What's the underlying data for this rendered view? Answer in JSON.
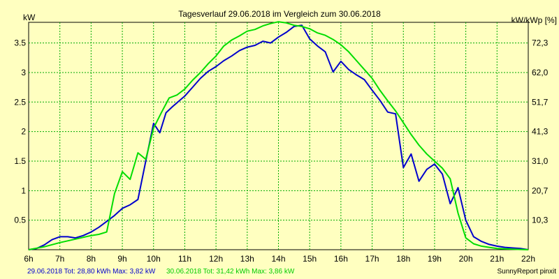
{
  "chart_data": {
    "type": "line",
    "title": "Tagesverlauf 29.06.2018 im Vergleich zum 30.06.2018",
    "ylabel_left": "kW",
    "ylabel_right": "kW/kWp [%]",
    "xlim": [
      6,
      22
    ],
    "ylim": [
      0,
      3.85
    ],
    "grid": true,
    "x_ticks": [
      {
        "value": 6,
        "label": "6h"
      },
      {
        "value": 7,
        "label": "7h"
      },
      {
        "value": 8,
        "label": "8h"
      },
      {
        "value": 9,
        "label": "9h"
      },
      {
        "value": 10,
        "label": "10h"
      },
      {
        "value": 11,
        "label": "11h"
      },
      {
        "value": 12,
        "label": "12h"
      },
      {
        "value": 13,
        "label": "13h"
      },
      {
        "value": 14,
        "label": "14h"
      },
      {
        "value": 15,
        "label": "15h"
      },
      {
        "value": 16,
        "label": "16h"
      },
      {
        "value": 17,
        "label": "17h"
      },
      {
        "value": 18,
        "label": "18h"
      },
      {
        "value": 19,
        "label": "19h"
      },
      {
        "value": 20,
        "label": "20h"
      },
      {
        "value": 21,
        "label": "21h"
      },
      {
        "value": 22,
        "label": "22h"
      }
    ],
    "y_ticks_left": [
      {
        "value": 0.5,
        "label": "0.5"
      },
      {
        "value": 1,
        "label": "1"
      },
      {
        "value": 1.5,
        "label": "1.5"
      },
      {
        "value": 2,
        "label": "2"
      },
      {
        "value": 2.5,
        "label": "2.5"
      },
      {
        "value": 3,
        "label": "3"
      },
      {
        "value": 3.5,
        "label": "3.5"
      }
    ],
    "y_ticks_right": [
      {
        "value": 0.5,
        "label": "10,3"
      },
      {
        "value": 1,
        "label": "20,7"
      },
      {
        "value": 1.5,
        "label": "31,0"
      },
      {
        "value": 2,
        "label": "41,3"
      },
      {
        "value": 2.5,
        "label": "51,7"
      },
      {
        "value": 3,
        "label": "62,0"
      },
      {
        "value": 3.5,
        "label": "72,3"
      }
    ],
    "series": [
      {
        "name": "29.06.2018 Tot: 28,80 kWh Max: 3,82 kW",
        "color": "#0000cc",
        "x": [
          6.0,
          6.25,
          6.5,
          6.75,
          7.0,
          7.25,
          7.5,
          7.75,
          8.0,
          8.25,
          8.5,
          8.75,
          9.0,
          9.25,
          9.5,
          9.75,
          10.0,
          10.2,
          10.4,
          10.6,
          11.0,
          11.25,
          11.5,
          11.75,
          12.0,
          12.25,
          12.5,
          12.75,
          13.0,
          13.25,
          13.5,
          13.75,
          14.0,
          14.25,
          14.5,
          14.75,
          15.0,
          15.25,
          15.5,
          15.75,
          16.0,
          16.25,
          16.5,
          16.75,
          17.0,
          17.25,
          17.5,
          17.75,
          18.0,
          18.25,
          18.5,
          18.75,
          19.0,
          19.25,
          19.5,
          19.75,
          20.0,
          20.25,
          20.5,
          20.75,
          21.0,
          21.25,
          21.5,
          21.75,
          22.0
        ],
        "y": [
          0.0,
          0.02,
          0.08,
          0.17,
          0.22,
          0.22,
          0.2,
          0.24,
          0.3,
          0.38,
          0.48,
          0.58,
          0.7,
          0.76,
          0.85,
          1.5,
          2.14,
          1.98,
          2.32,
          2.42,
          2.6,
          2.75,
          2.9,
          3.02,
          3.1,
          3.2,
          3.28,
          3.37,
          3.43,
          3.46,
          3.53,
          3.5,
          3.6,
          3.68,
          3.78,
          3.8,
          3.57,
          3.45,
          3.35,
          3.01,
          3.19,
          3.05,
          2.96,
          2.88,
          2.7,
          2.53,
          2.33,
          2.3,
          1.39,
          1.62,
          1.16,
          1.36,
          1.45,
          1.28,
          0.78,
          1.05,
          0.5,
          0.22,
          0.14,
          0.09,
          0.06,
          0.04,
          0.03,
          0.02,
          0.0
        ]
      },
      {
        "name": "30.06.2018 Tot: 31,42 kWh Max: 3,86 kW",
        "color": "#00dd00",
        "x": [
          6.0,
          6.5,
          7.0,
          7.5,
          8.0,
          8.25,
          8.5,
          8.75,
          9.0,
          9.25,
          9.5,
          9.75,
          10.0,
          10.25,
          10.5,
          10.75,
          11.0,
          11.25,
          11.5,
          11.75,
          12.0,
          12.25,
          12.5,
          12.75,
          13.0,
          13.25,
          13.5,
          13.75,
          14.0,
          14.25,
          14.5,
          14.75,
          15.0,
          15.25,
          15.5,
          15.75,
          16.0,
          16.25,
          16.5,
          16.75,
          17.0,
          17.25,
          17.5,
          17.75,
          18.0,
          18.25,
          18.5,
          18.75,
          19.0,
          19.25,
          19.5,
          19.75,
          20.0,
          20.25,
          20.5,
          20.75,
          21.0,
          21.5,
          22.0
        ],
        "y": [
          0.0,
          0.05,
          0.12,
          0.18,
          0.24,
          0.26,
          0.3,
          0.95,
          1.32,
          1.19,
          1.64,
          1.53,
          2.06,
          2.32,
          2.57,
          2.62,
          2.72,
          2.87,
          3.0,
          3.15,
          3.28,
          3.45,
          3.55,
          3.62,
          3.7,
          3.73,
          3.79,
          3.83,
          3.86,
          3.84,
          3.8,
          3.78,
          3.74,
          3.67,
          3.63,
          3.56,
          3.47,
          3.35,
          3.2,
          3.05,
          2.9,
          2.7,
          2.52,
          2.35,
          2.15,
          1.95,
          1.77,
          1.62,
          1.5,
          1.38,
          1.2,
          0.62,
          0.2,
          0.1,
          0.06,
          0.04,
          0.02,
          0.01,
          0.0
        ]
      }
    ],
    "footer_right": "SunnyReport pinxit"
  }
}
